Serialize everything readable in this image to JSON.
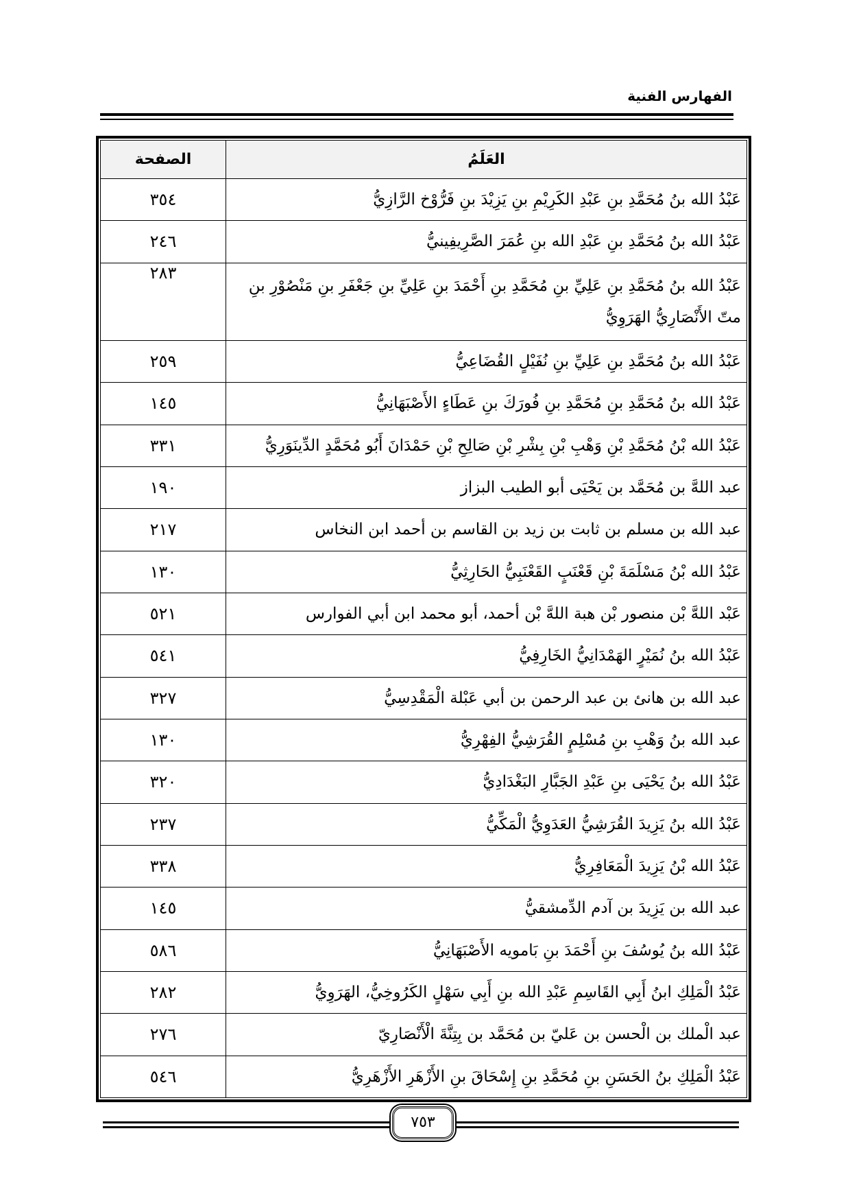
{
  "header": {
    "running_title": "الفهارس الفنية"
  },
  "table": {
    "columns": {
      "name": "العَلَمُ",
      "page": "الصفحة"
    },
    "rows": [
      {
        "name": "عَبْدُ الله بنُ مُحَمَّدِ بنِ عَبْدِ الكَرِيْمِ بنِ يَزِيْدَ بنِ فَرُّوْخ الرَّازِيُّ",
        "page": "٣٥٤"
      },
      {
        "name": "عَبْدُ الله بنُ مُحَمَّدِ بنِ عَبْدِ الله بنِ عُمَرَ الصَّرِيفِينيُّ",
        "page": "٢٤٦"
      },
      {
        "name": "عَبْدُ الله بنُ مُحَمَّدِ بنِ عَلِيِّ بنِ مُحَمَّدِ بنِ أَحْمَدَ بنِ عَلِيِّ بنِ جَعْفَرِ بنِ مَنْصُوْرِ بنِ متّ الأَنْصَارِيُّ الهَرَوِيُّ",
        "page": "٢٨٣"
      },
      {
        "name": "عَبْدُ الله بنُ مُحَمَّدِ بنِ عَلِيِّ بنِ نُفَيْلٍ القُضَاعِيُّ",
        "page": "٢٥٩"
      },
      {
        "name": "عَبْدُ الله بنُ مُحَمَّدِ بنِ مُحَمَّدِ بنِ فُورَكَ بنِ عَطَاءٍ الأَصْبَهَانِيُّ",
        "page": "١٤٥"
      },
      {
        "name": "عَبْدُ الله بْنُ مُحَمَّدِ بْنِ وَهْبِ بْنِ بِشْرِ بْنِ صَالِحِ بْنِ حَمْدَانَ أَبُو مُحَمَّدٍ الدِّينَوَرِيُّ",
        "page": "٣٣١"
      },
      {
        "name": "عبد اللهَّ بن مُحَمَّد بن يَحْيَى أبو الطيب البزاز",
        "page": "١٩٠"
      },
      {
        "name": "عبد الله بن مسلم بن ثابت بن زيد بن القاسم بن أحمد ابن النخاس",
        "page": "٢١٧"
      },
      {
        "name": "عَبْدُ الله بْنُ مَسْلَمَةَ بْنِ قَعْنَبٍ القَعْنَبِيُّ الحَارِثِيُّ",
        "page": "١٣٠"
      },
      {
        "name": "عَبْد اللهَّ بْن منصور بْن هبة اللهَّ بْن أحمد، أبو محمد ابن أبي الفوارس",
        "page": "٥٢١"
      },
      {
        "name": "عَبْدُ الله بنُ نُمَيْرٍ الهَمْدَانِيُّ الخَارِفِيُّ",
        "page": "٥٤١"
      },
      {
        "name": "عبد الله بن هانئ بن عبد الرحمن بن أبي عَبْلة الْمَقْدِسِيُّ",
        "page": "٣٢٧"
      },
      {
        "name": "عبد الله بنُ وَهْبِ بنِ مُسْلِمٍ القُرَشِيُّ الفِهْرِيُّ",
        "page": "١٣٠"
      },
      {
        "name": "عَبْدُ الله بنُ يَحْيَى بنِ عَبْدِ الجَبَّارِ البَغْدَادِيُّ",
        "page": "٣٢٠"
      },
      {
        "name": "عَبْدُ الله بنُ يَزِيدَ القُرَشِيُّ العَدَوِيُّ الْمَكِّيُّ",
        "page": "٢٣٧"
      },
      {
        "name": "عَبْدُ الله بْنُ يَزِيدَ الْمَعَافِرِيُّ",
        "page": "٣٣٨"
      },
      {
        "name": "عبد الله بن يَزِيدَ بن آدم الدِّمشقيُّ",
        "page": "١٤٥"
      },
      {
        "name": "عَبْدُ الله بنُ يُوسُفَ بنِ أَحْمَدَ بنِ بَامويه الأَصْبَهَانِيُّ",
        "page": "٥٨٦"
      },
      {
        "name": "عَبْدُ الْمَلِكِ ابنُ أَبِي القَاسِمِ عَبْدِ الله بنِ أَبِي سَهْلٍ الكَرُوخِيُّ، الهَرَوِيُّ",
        "page": "٢٨٢"
      },
      {
        "name": "عبد الْملك بن الْحسن بن عَليّ بن مُحَمَّد بن بِتِنَّةَ الْأَنْصَارِيّ",
        "page": "٢٧٦"
      },
      {
        "name": "عَبْدُ الْمَلِكِ بنُ الحَسَنِ بنِ مُحَمَّدِ بنِ إِسْحَاقَ بنِ الأَزْهَرِ الأَزْهَرِيُّ",
        "page": "٥٤٦"
      }
    ]
  },
  "footer": {
    "page_number": "٧٥٣"
  }
}
